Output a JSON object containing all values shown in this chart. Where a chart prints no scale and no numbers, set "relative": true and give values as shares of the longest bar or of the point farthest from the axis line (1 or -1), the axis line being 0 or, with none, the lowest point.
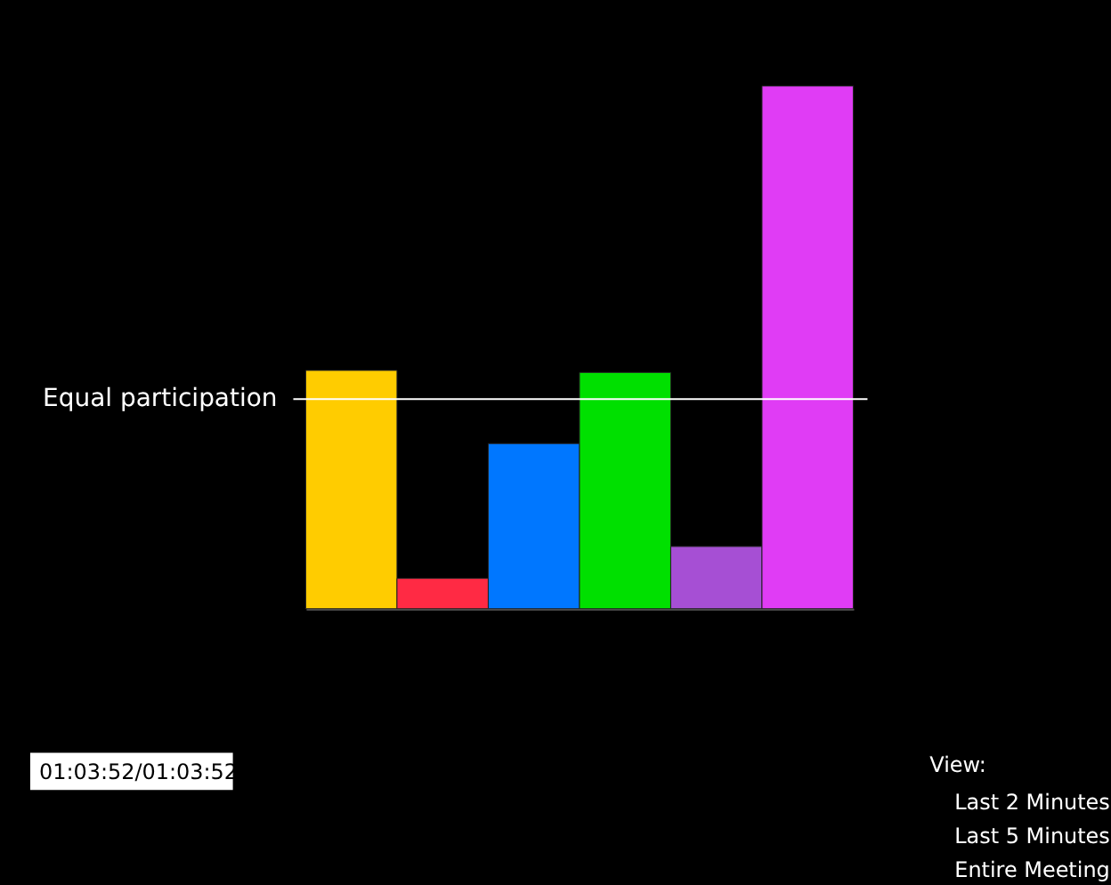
{
  "chart_data": {
    "type": "bar",
    "categories": [
      null,
      null,
      null,
      null,
      null,
      null
    ],
    "values": [
      0.456,
      0.058,
      0.316,
      0.452,
      0.119,
      1
    ],
    "colors": [
      "#ffcc00",
      "#ff2a44",
      "#0077ff",
      "#00e000",
      "#a64fd4",
      "#e03cf5"
    ],
    "relative": true,
    "ref_lines": [
      {
        "axis": "y",
        "value": 0.401,
        "label": "Equal participation",
        "color": "#ffffff"
      }
    ],
    "annotations": [
      "01:03:52/01:03:52",
      "View:",
      "Last 2 Minutes",
      "Last 5 Minutes",
      "Entire Meeting"
    ]
  }
}
